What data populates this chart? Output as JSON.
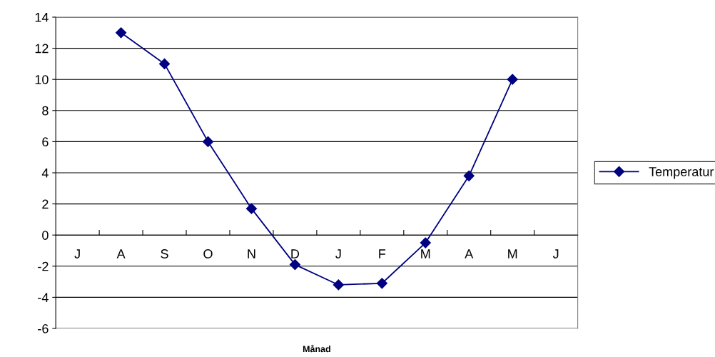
{
  "chart_data": {
    "type": "line",
    "xlabel": "Månad",
    "categories": [
      "J",
      "A",
      "S",
      "O",
      "N",
      "D",
      "J",
      "F",
      "M",
      "A",
      "M",
      "J"
    ],
    "series": [
      {
        "name": "Temperatur",
        "color": "#000080",
        "values": [
          null,
          13,
          11,
          6,
          1.7,
          -1.9,
          -3.2,
          -3.1,
          -0.5,
          3.8,
          10,
          null
        ]
      }
    ],
    "ylim": [
      -6,
      14
    ],
    "yticks": [
      -6,
      -4,
      -2,
      0,
      2,
      4,
      6,
      8,
      10,
      12,
      14
    ],
    "grid": "y",
    "legend": "right",
    "marker": "diamond",
    "line_style": "solid"
  }
}
